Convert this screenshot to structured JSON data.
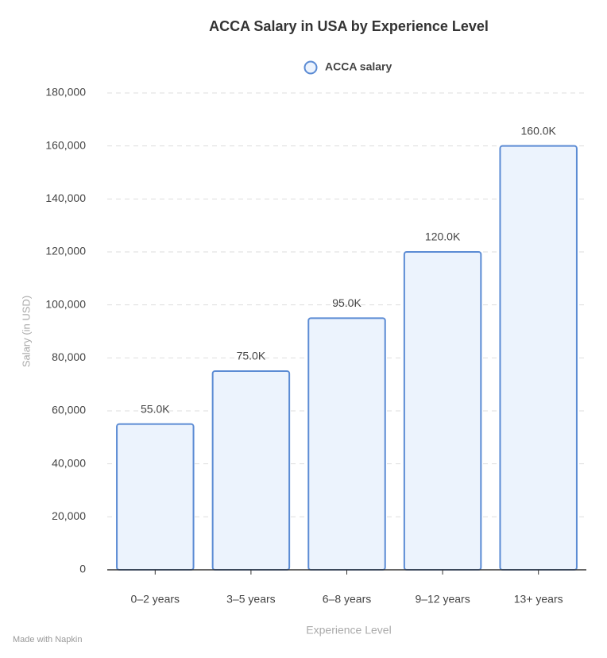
{
  "chart_data": {
    "type": "bar",
    "title": "ACCA Salary in USA by Experience Level",
    "x_label": "Experience Level",
    "y_label": "Salary (in USD)",
    "categories": [
      "0–2 years",
      "3–5 years",
      "6–8 years",
      "9–12 years",
      "13+ years"
    ],
    "series": [
      {
        "name": "ACCA salary",
        "color": "#5b8bd4",
        "values": [
          55000,
          75000,
          95000,
          120000,
          160000
        ],
        "value_labels": [
          "55.0K",
          "75.0K",
          "95.0K",
          "120.0K",
          "160.0K"
        ]
      }
    ],
    "ylim": [
      0,
      180000
    ],
    "yticks": [
      0,
      {
        "value": 20000,
        "label": "20,000"
      },
      {
        "value": 40000,
        "label": "40,000"
      },
      {
        "value": 60000,
        "label": "60,000"
      },
      {
        "value": 80000,
        "label": "80,000"
      },
      {
        "value": 100000,
        "label": "100,000"
      },
      {
        "value": 120000,
        "label": "120,000"
      },
      {
        "value": 140000,
        "label": "140,000"
      },
      {
        "value": 160000,
        "label": "160,000"
      },
      {
        "value": 180000,
        "label": "180,000"
      }
    ],
    "grid": true,
    "legend": "top",
    "footer": "Made with Napkin"
  }
}
